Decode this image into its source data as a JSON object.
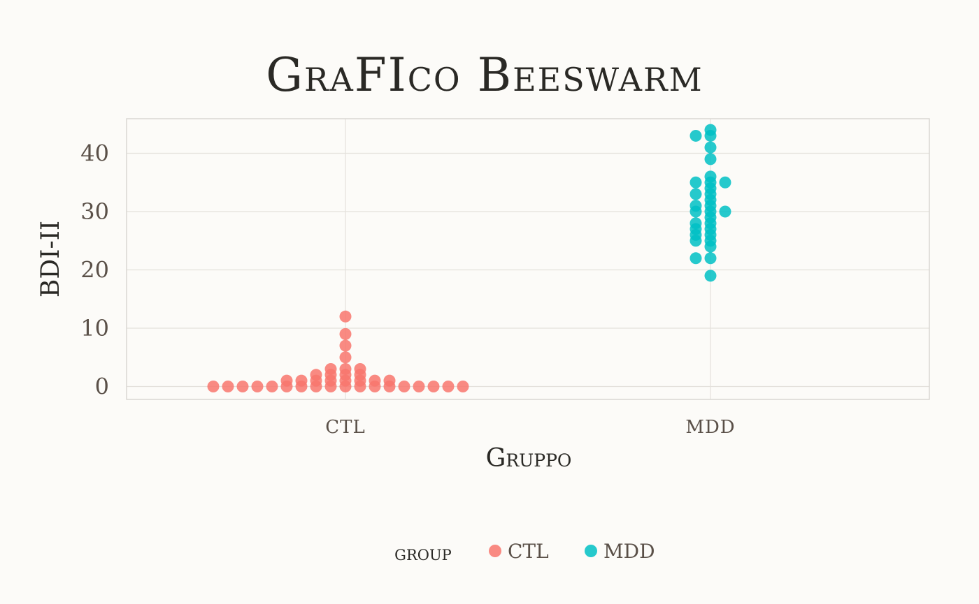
{
  "chart_data": {
    "type": "scatter",
    "subtype": "beeswarm",
    "title": "GraFIco Beeswarm",
    "xlabel": "Gruppo",
    "ylabel": "BDI-II",
    "categories": [
      "CTL",
      "MDD"
    ],
    "ylim": [
      -2,
      46
    ],
    "yticks": [
      0,
      10,
      20,
      30,
      40
    ],
    "ytick_labels": [
      "0",
      "10",
      "20",
      "30",
      "40"
    ],
    "grid": true,
    "legend": {
      "title": "group",
      "position": "bottom",
      "entries": [
        {
          "label": "CTL",
          "color": "#f8766d"
        },
        {
          "label": "MDD",
          "color": "#00bfc4"
        }
      ]
    },
    "series": [
      {
        "name": "CTL",
        "color": "#f8766d",
        "values": [
          0,
          0,
          0,
          0,
          0,
          0,
          0,
          0,
          0,
          0,
          0,
          0,
          0,
          0,
          0,
          0,
          0,
          0,
          1,
          1,
          1,
          1,
          1,
          1,
          1,
          1,
          2,
          2,
          2,
          2,
          3,
          3,
          3,
          5,
          7,
          9,
          12
        ]
      },
      {
        "name": "MDD",
        "color": "#00bfc4",
        "values": [
          19,
          22,
          22,
          24,
          25,
          25,
          26,
          26,
          27,
          27,
          28,
          28,
          29,
          30,
          30,
          30,
          31,
          31,
          32,
          33,
          33,
          34,
          35,
          35,
          35,
          36,
          39,
          41,
          43,
          43,
          44
        ]
      }
    ]
  }
}
